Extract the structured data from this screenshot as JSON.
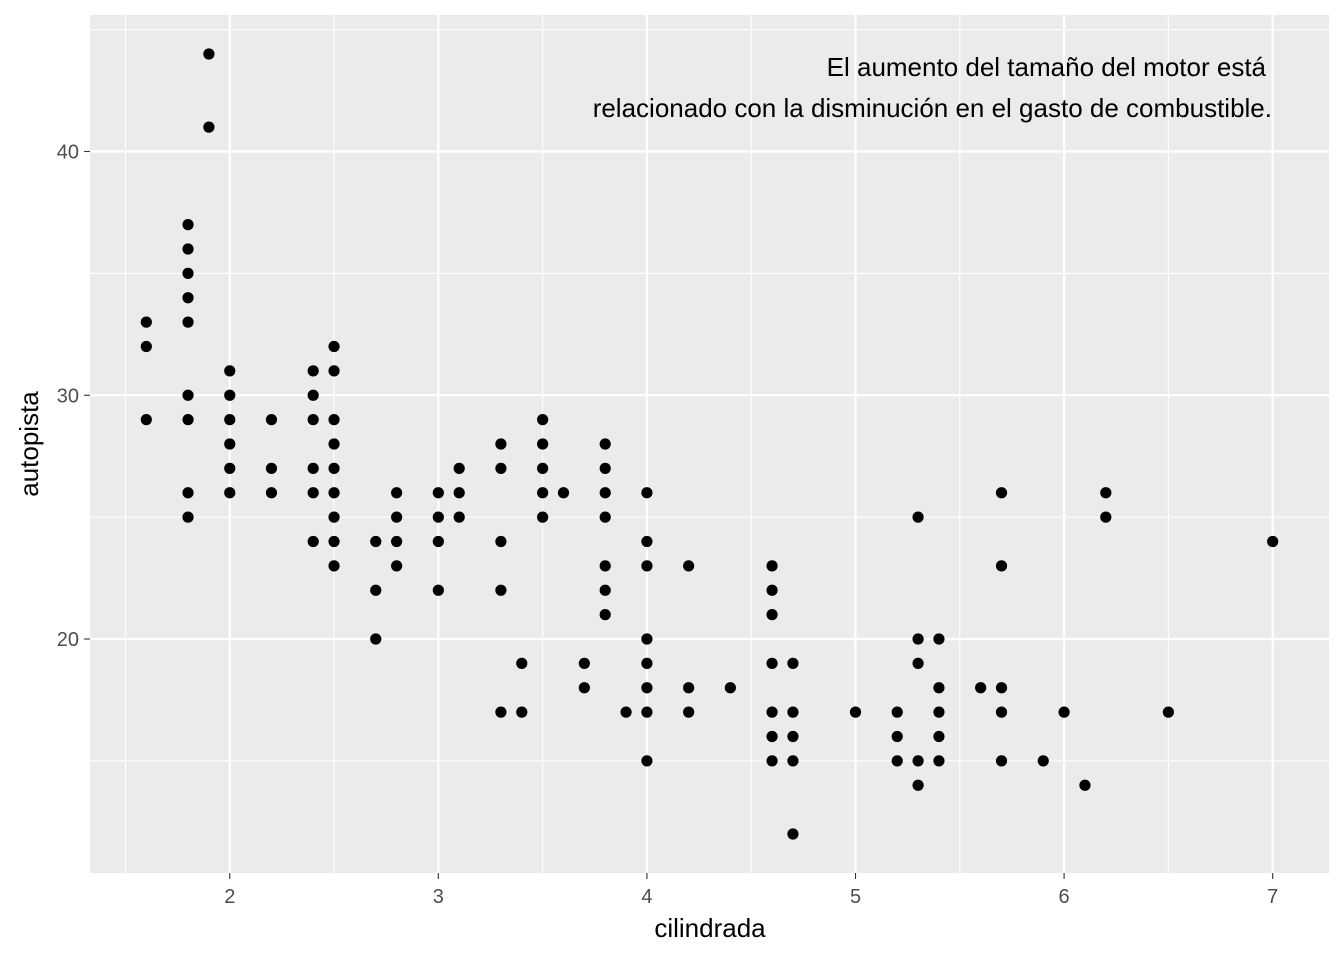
{
  "chart_data": {
    "type": "scatter",
    "xlabel": "cilindrada",
    "ylabel": "autopista",
    "xlim": [
      1.33,
      7.27
    ],
    "ylim": [
      10.4,
      45.6
    ],
    "xticks": [
      2,
      3,
      4,
      5,
      6,
      7
    ],
    "yticks": [
      20,
      30,
      40
    ],
    "grid": true,
    "annotation": {
      "lines": [
        "El aumento del tamaño del motor está",
        "relacionado con la disminución en el gasto de combustible."
      ],
      "x": 7,
      "y": 44,
      "align": "right"
    },
    "point_color": "#000000",
    "background": "#ebebeb",
    "points": [
      [
        1.6,
        33
      ],
      [
        1.6,
        32
      ],
      [
        1.6,
        29
      ],
      [
        1.8,
        37
      ],
      [
        1.8,
        36
      ],
      [
        1.8,
        35
      ],
      [
        1.8,
        34
      ],
      [
        1.8,
        33
      ],
      [
        1.8,
        30
      ],
      [
        1.8,
        29
      ],
      [
        1.8,
        26
      ],
      [
        1.8,
        25
      ],
      [
        1.9,
        44
      ],
      [
        1.9,
        41
      ],
      [
        2.0,
        31
      ],
      [
        2.0,
        30
      ],
      [
        2.0,
        29
      ],
      [
        2.0,
        28
      ],
      [
        2.0,
        27
      ],
      [
        2.0,
        26
      ],
      [
        2.2,
        29
      ],
      [
        2.2,
        27
      ],
      [
        2.2,
        26
      ],
      [
        2.4,
        31
      ],
      [
        2.4,
        30
      ],
      [
        2.4,
        29
      ],
      [
        2.4,
        27
      ],
      [
        2.4,
        26
      ],
      [
        2.4,
        24
      ],
      [
        2.5,
        32
      ],
      [
        2.5,
        31
      ],
      [
        2.5,
        29
      ],
      [
        2.5,
        28
      ],
      [
        2.5,
        27
      ],
      [
        2.5,
        26
      ],
      [
        2.5,
        25
      ],
      [
        2.5,
        24
      ],
      [
        2.5,
        23
      ],
      [
        2.7,
        24
      ],
      [
        2.7,
        22
      ],
      [
        2.7,
        20
      ],
      [
        2.8,
        26
      ],
      [
        2.8,
        25
      ],
      [
        2.8,
        24
      ],
      [
        2.8,
        23
      ],
      [
        3.0,
        26
      ],
      [
        3.0,
        25
      ],
      [
        3.0,
        24
      ],
      [
        3.0,
        22
      ],
      [
        3.1,
        27
      ],
      [
        3.1,
        26
      ],
      [
        3.1,
        25
      ],
      [
        3.3,
        28
      ],
      [
        3.3,
        27
      ],
      [
        3.3,
        24
      ],
      [
        3.3,
        22
      ],
      [
        3.3,
        17
      ],
      [
        3.4,
        19
      ],
      [
        3.4,
        17
      ],
      [
        3.5,
        29
      ],
      [
        3.5,
        28
      ],
      [
        3.5,
        27
      ],
      [
        3.5,
        26
      ],
      [
        3.5,
        25
      ],
      [
        3.6,
        26
      ],
      [
        3.7,
        19
      ],
      [
        3.7,
        18
      ],
      [
        3.8,
        28
      ],
      [
        3.8,
        27
      ],
      [
        3.8,
        26
      ],
      [
        3.8,
        25
      ],
      [
        3.8,
        23
      ],
      [
        3.8,
        22
      ],
      [
        3.8,
        21
      ],
      [
        3.9,
        17
      ],
      [
        4.0,
        26
      ],
      [
        4.0,
        24
      ],
      [
        4.0,
        23
      ],
      [
        4.0,
        20
      ],
      [
        4.0,
        19
      ],
      [
        4.0,
        18
      ],
      [
        4.0,
        17
      ],
      [
        4.0,
        15
      ],
      [
        4.2,
        23
      ],
      [
        4.2,
        18
      ],
      [
        4.2,
        17
      ],
      [
        4.4,
        18
      ],
      [
        4.6,
        23
      ],
      [
        4.6,
        22
      ],
      [
        4.6,
        21
      ],
      [
        4.6,
        19
      ],
      [
        4.6,
        17
      ],
      [
        4.6,
        16
      ],
      [
        4.6,
        15
      ],
      [
        4.7,
        19
      ],
      [
        4.7,
        17
      ],
      [
        4.7,
        16
      ],
      [
        4.7,
        15
      ],
      [
        4.7,
        12
      ],
      [
        5.0,
        17
      ],
      [
        5.2,
        17
      ],
      [
        5.2,
        16
      ],
      [
        5.2,
        15
      ],
      [
        5.3,
        25
      ],
      [
        5.3,
        20
      ],
      [
        5.3,
        19
      ],
      [
        5.3,
        15
      ],
      [
        5.3,
        14
      ],
      [
        5.4,
        20
      ],
      [
        5.4,
        18
      ],
      [
        5.4,
        17
      ],
      [
        5.4,
        16
      ],
      [
        5.4,
        15
      ],
      [
        5.6,
        18
      ],
      [
        5.7,
        26
      ],
      [
        5.7,
        23
      ],
      [
        5.7,
        18
      ],
      [
        5.7,
        17
      ],
      [
        5.7,
        15
      ],
      [
        5.9,
        15
      ],
      [
        6.0,
        17
      ],
      [
        6.1,
        14
      ],
      [
        6.2,
        26
      ],
      [
        6.2,
        25
      ],
      [
        6.5,
        17
      ],
      [
        7.0,
        24
      ]
    ]
  }
}
